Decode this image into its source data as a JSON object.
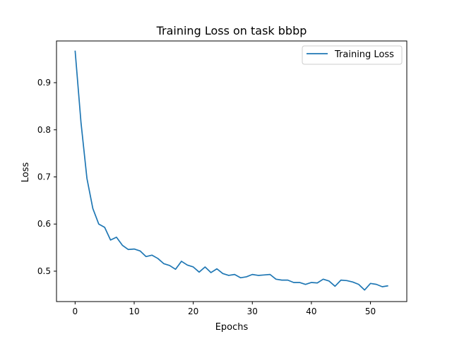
{
  "chart_data": {
    "type": "line",
    "title": "Training Loss on task bbbp",
    "xlabel": "Epochs",
    "ylabel": "Loss",
    "xlim": [
      -3.15,
      56.15
    ],
    "ylim": [
      0.4355,
      0.9885
    ],
    "xticks": [
      0,
      10,
      20,
      30,
      40,
      50
    ],
    "yticks": [
      0.5,
      0.6,
      0.7,
      0.8,
      0.9
    ],
    "ytick_labels": [
      "0.5",
      "0.6",
      "0.7",
      "0.8",
      "0.9"
    ],
    "grid": false,
    "legend": {
      "placement": "top-right",
      "entries": [
        "Training Loss"
      ]
    },
    "series": [
      {
        "name": "Training Loss",
        "color": "#1f77b4",
        "x": [
          0,
          1,
          2,
          3,
          4,
          5,
          6,
          7,
          8,
          9,
          10,
          11,
          12,
          13,
          14,
          15,
          16,
          17,
          18,
          19,
          20,
          21,
          22,
          23,
          24,
          25,
          26,
          27,
          28,
          29,
          30,
          31,
          32,
          33,
          34,
          35,
          36,
          37,
          38,
          39,
          40,
          41,
          42,
          43,
          44,
          45,
          46,
          47,
          48,
          49,
          50,
          51,
          52,
          53
        ],
        "values": [
          0.968,
          0.815,
          0.697,
          0.633,
          0.6,
          0.593,
          0.566,
          0.572,
          0.555,
          0.546,
          0.547,
          0.543,
          0.531,
          0.534,
          0.527,
          0.516,
          0.512,
          0.504,
          0.521,
          0.513,
          0.509,
          0.498,
          0.509,
          0.497,
          0.505,
          0.495,
          0.491,
          0.493,
          0.486,
          0.488,
          0.493,
          0.491,
          0.492,
          0.493,
          0.483,
          0.481,
          0.481,
          0.476,
          0.476,
          0.472,
          0.476,
          0.475,
          0.483,
          0.479,
          0.468,
          0.481,
          0.48,
          0.477,
          0.472,
          0.46,
          0.474,
          0.472,
          0.467,
          0.469
        ]
      }
    ]
  }
}
